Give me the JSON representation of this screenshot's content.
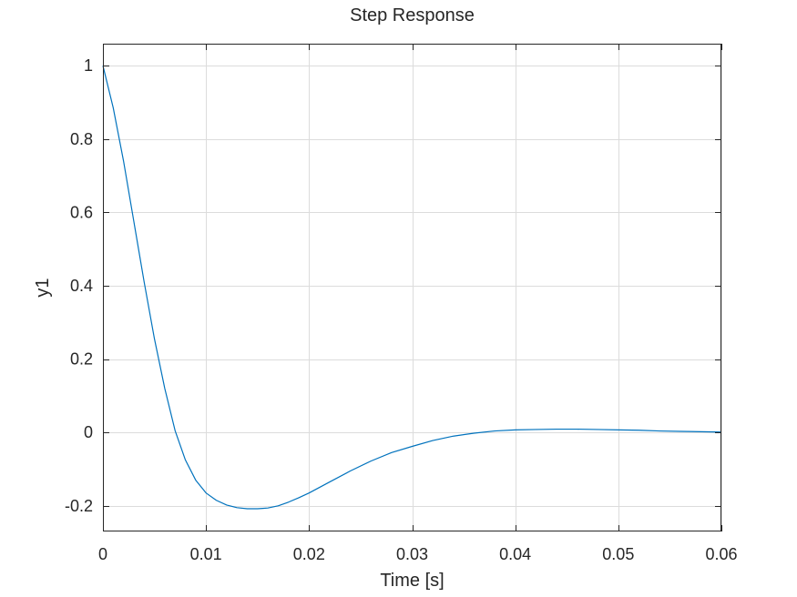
{
  "chart_data": {
    "type": "line",
    "title": "Step Response",
    "xlabel": "Time [s]",
    "ylabel": "y1",
    "xlim": [
      0,
      0.06
    ],
    "ylim": [
      -0.27,
      1.06
    ],
    "grid": true,
    "x_ticks": [
      0,
      0.01,
      0.02,
      0.03,
      0.04,
      0.05,
      0.06
    ],
    "x_tick_labels": [
      "0",
      "0.01",
      "0.02",
      "0.03",
      "0.04",
      "0.05",
      "0.06"
    ],
    "y_ticks": [
      -0.2,
      0,
      0.2,
      0.4,
      0.6,
      0.8,
      1
    ],
    "y_tick_labels": [
      "-0.2",
      "0",
      "0.2",
      "0.4",
      "0.6",
      "0.8",
      "1"
    ],
    "series": [
      {
        "color": "#0072bd",
        "x": [
          0,
          0.001,
          0.002,
          0.003,
          0.004,
          0.005,
          0.006,
          0.007,
          0.008,
          0.009,
          0.01,
          0.011,
          0.012,
          0.013,
          0.014,
          0.015,
          0.0155,
          0.016,
          0.017,
          0.018,
          0.019,
          0.02,
          0.022,
          0.024,
          0.026,
          0.028,
          0.03,
          0.032,
          0.034,
          0.036,
          0.038,
          0.04,
          0.042,
          0.044,
          0.046,
          0.048,
          0.05,
          0.052,
          0.054,
          0.056,
          0.058,
          0.06
        ],
        "y": [
          1.0,
          0.885,
          0.74,
          0.575,
          0.41,
          0.255,
          0.12,
          0.005,
          -0.075,
          -0.13,
          -0.165,
          -0.185,
          -0.198,
          -0.205,
          -0.208,
          -0.208,
          -0.207,
          -0.206,
          -0.2,
          -0.19,
          -0.178,
          -0.165,
          -0.135,
          -0.105,
          -0.078,
          -0.055,
          -0.038,
          -0.022,
          -0.01,
          -0.002,
          0.004,
          0.007,
          0.008,
          0.009,
          0.009,
          0.008,
          0.007,
          0.006,
          0.004,
          0.003,
          0.002,
          0.001
        ]
      }
    ]
  }
}
